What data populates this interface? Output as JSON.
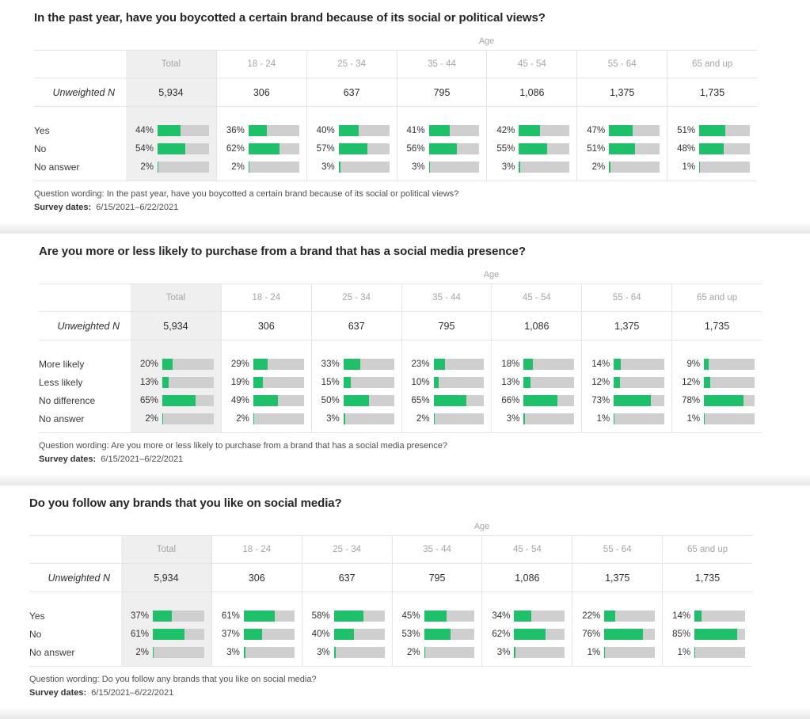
{
  "labels": {
    "age_group": "Age",
    "unweighted": "Unweighted N",
    "survey_dates": "Survey dates:"
  },
  "colors": {
    "bar_fill_green": "#1fc06a",
    "bar_track_gray": "#cfcfcf",
    "total_column_bg": "#efefef",
    "border_gray": "#e4e4e4"
  },
  "chart_data": [
    {
      "type": "bar",
      "title": "In the past year, have you boycotted a certain brand because of its social or political views?",
      "group_header": "Age",
      "categories": [
        "Total",
        "18 - 24",
        "25 - 34",
        "35 - 44",
        "45 - 54",
        "55 - 64",
        "65 and up"
      ],
      "unweighted_n": [
        "5,934",
        "306",
        "637",
        "795",
        "1,086",
        "1,375",
        "1,735"
      ],
      "unit": "%",
      "xlim": [
        0,
        100
      ],
      "series": [
        {
          "name": "Yes",
          "values": [
            44,
            36,
            40,
            41,
            42,
            47,
            51
          ]
        },
        {
          "name": "No",
          "values": [
            54,
            62,
            57,
            56,
            55,
            51,
            48
          ]
        },
        {
          "name": "No answer",
          "values": [
            2,
            2,
            3,
            3,
            3,
            2,
            1
          ]
        }
      ],
      "question_wording": "Question wording: In the past year, have you boycotted a certain brand because of its social or political views?",
      "survey_dates": "6/15/2021–6/22/2021"
    },
    {
      "type": "bar",
      "title": "Are you more or less likely to purchase from a brand that has a social media presence?",
      "group_header": "Age",
      "categories": [
        "Total",
        "18 - 24",
        "25 - 34",
        "35 - 44",
        "45 - 54",
        "55 - 64",
        "65 and up"
      ],
      "unweighted_n": [
        "5,934",
        "306",
        "637",
        "795",
        "1,086",
        "1,375",
        "1,735"
      ],
      "unit": "%",
      "xlim": [
        0,
        100
      ],
      "series": [
        {
          "name": "More likely",
          "values": [
            20,
            29,
            33,
            23,
            18,
            14,
            9
          ]
        },
        {
          "name": "Less likely",
          "values": [
            13,
            19,
            15,
            10,
            13,
            12,
            12
          ]
        },
        {
          "name": "No difference",
          "values": [
            65,
            49,
            50,
            65,
            66,
            73,
            78
          ]
        },
        {
          "name": "No answer",
          "values": [
            2,
            2,
            3,
            2,
            3,
            1,
            1
          ]
        }
      ],
      "question_wording": "Question wording: Are you more or less likely to purchase from a brand that has a social media presence?",
      "survey_dates": "6/15/2021–6/22/2021"
    },
    {
      "type": "bar",
      "title": "Do you follow any brands that you like on social media?",
      "group_header": "Age",
      "categories": [
        "Total",
        "18 - 24",
        "25 - 34",
        "35 - 44",
        "45 - 54",
        "55 - 64",
        "65 and up"
      ],
      "unweighted_n": [
        "5,934",
        "306",
        "637",
        "795",
        "1,086",
        "1,375",
        "1,735"
      ],
      "unit": "%",
      "xlim": [
        0,
        100
      ],
      "series": [
        {
          "name": "Yes",
          "values": [
            37,
            61,
            58,
            45,
            34,
            22,
            14
          ]
        },
        {
          "name": "No",
          "values": [
            61,
            37,
            40,
            53,
            62,
            76,
            85
          ]
        },
        {
          "name": "No answer",
          "values": [
            2,
            3,
            3,
            2,
            3,
            1,
            1
          ]
        }
      ],
      "question_wording": "Question wording: Do you follow any brands that you like on social media?",
      "survey_dates": "6/15/2021–6/22/2021"
    }
  ]
}
